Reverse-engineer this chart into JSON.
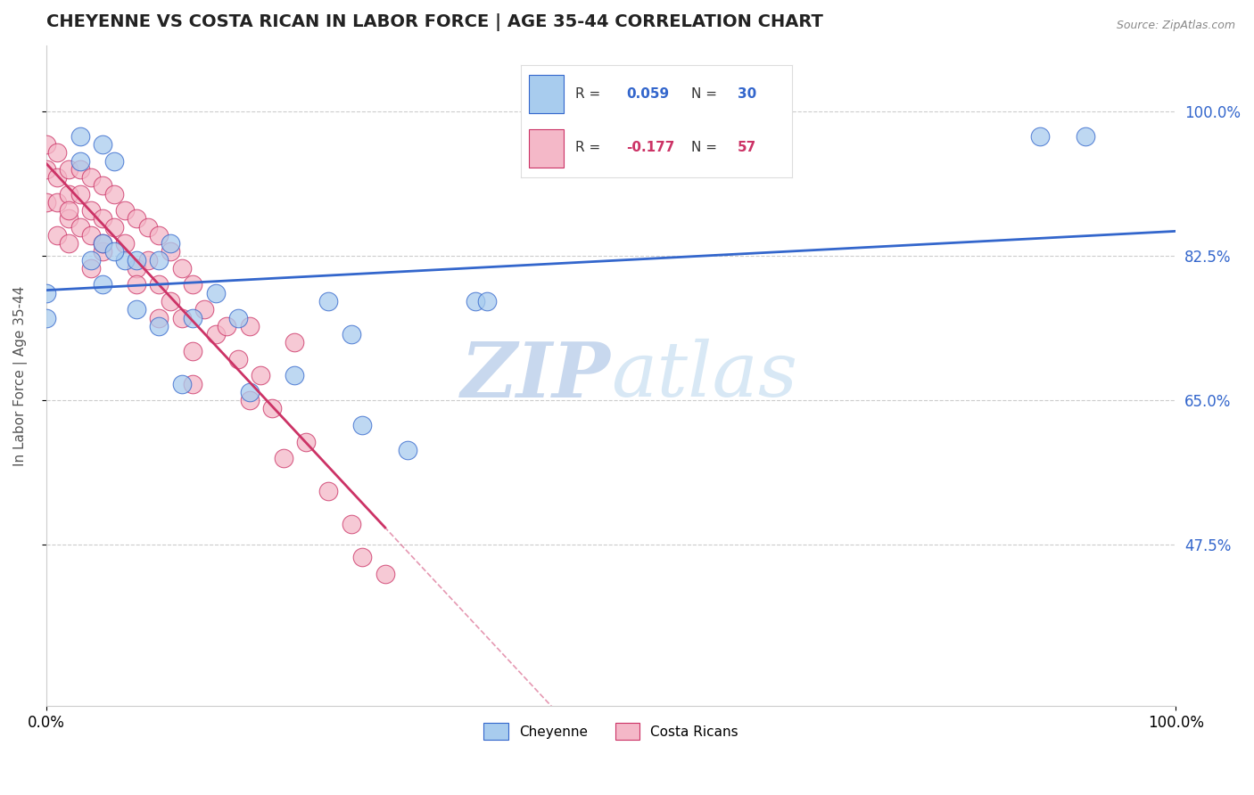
{
  "title": "CHEYENNE VS COSTA RICAN IN LABOR FORCE | AGE 35-44 CORRELATION CHART",
  "source": "Source: ZipAtlas.com",
  "ylabel": "In Labor Force | Age 35-44",
  "xlim": [
    0.0,
    1.0
  ],
  "ylim": [
    0.28,
    1.08
  ],
  "cheyenne_R": 0.059,
  "cheyenne_N": 30,
  "costarican_R": -0.177,
  "costarican_N": 57,
  "cheyenne_color": "#A8CCEE",
  "costarican_color": "#F4B8C8",
  "trend_cheyenne_color": "#3366CC",
  "trend_costarican_color": "#CC3366",
  "watermark_color": "#D8E8F5",
  "background_color": "#FFFFFF",
  "yticks": [
    0.475,
    0.65,
    0.825,
    1.0
  ],
  "ytick_labels": [
    "47.5%",
    "65.0%",
    "82.5%",
    "100.0%"
  ],
  "cheyenne_x": [
    0.0,
    0.0,
    0.03,
    0.04,
    0.05,
    0.05,
    0.06,
    0.07,
    0.08,
    0.1,
    0.11,
    0.13,
    0.15,
    0.17,
    0.18,
    0.22,
    0.25,
    0.27,
    0.28,
    0.32,
    0.38,
    0.39,
    0.88,
    0.92,
    0.03,
    0.05,
    0.06,
    0.08,
    0.1,
    0.12
  ],
  "cheyenne_y": [
    0.78,
    0.75,
    0.97,
    0.82,
    0.96,
    0.84,
    0.94,
    0.82,
    0.82,
    0.82,
    0.84,
    0.75,
    0.78,
    0.75,
    0.66,
    0.68,
    0.77,
    0.73,
    0.62,
    0.59,
    0.77,
    0.77,
    0.97,
    0.97,
    0.94,
    0.79,
    0.83,
    0.76,
    0.74,
    0.67
  ],
  "costarican_x": [
    0.0,
    0.0,
    0.0,
    0.01,
    0.01,
    0.01,
    0.01,
    0.02,
    0.02,
    0.02,
    0.02,
    0.03,
    0.03,
    0.03,
    0.04,
    0.04,
    0.04,
    0.04,
    0.05,
    0.05,
    0.05,
    0.06,
    0.06,
    0.07,
    0.07,
    0.08,
    0.08,
    0.09,
    0.09,
    0.1,
    0.1,
    0.11,
    0.11,
    0.12,
    0.12,
    0.13,
    0.13,
    0.14,
    0.15,
    0.16,
    0.17,
    0.18,
    0.19,
    0.2,
    0.21,
    0.22,
    0.23,
    0.25,
    0.27,
    0.28,
    0.3,
    0.02,
    0.05,
    0.08,
    0.1,
    0.13,
    0.18
  ],
  "costarican_y": [
    0.96,
    0.93,
    0.89,
    0.95,
    0.92,
    0.89,
    0.85,
    0.93,
    0.9,
    0.87,
    0.84,
    0.93,
    0.9,
    0.86,
    0.92,
    0.88,
    0.85,
    0.81,
    0.91,
    0.87,
    0.83,
    0.9,
    0.86,
    0.88,
    0.84,
    0.87,
    0.81,
    0.86,
    0.82,
    0.85,
    0.79,
    0.83,
    0.77,
    0.81,
    0.75,
    0.79,
    0.71,
    0.76,
    0.73,
    0.74,
    0.7,
    0.74,
    0.68,
    0.64,
    0.58,
    0.72,
    0.6,
    0.54,
    0.5,
    0.46,
    0.44,
    0.88,
    0.84,
    0.79,
    0.75,
    0.67,
    0.65
  ]
}
